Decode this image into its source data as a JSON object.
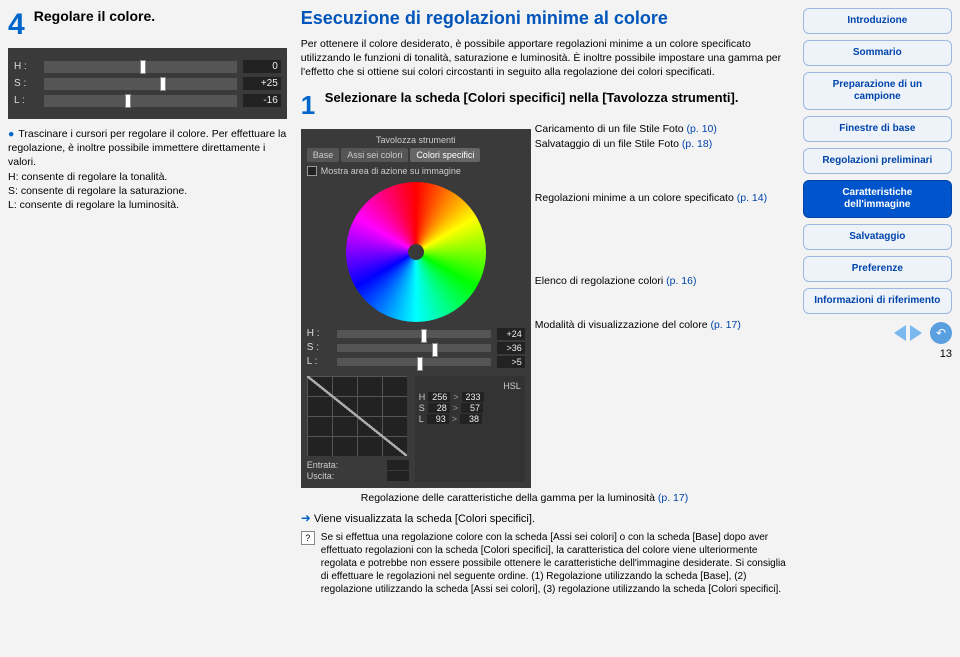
{
  "left": {
    "step_num": "4",
    "step_title": "Regolare il colore.",
    "sliders": [
      {
        "label": "H :",
        "thumb_pct": 50,
        "value": "0"
      },
      {
        "label": "S :",
        "thumb_pct": 60,
        "value": "+25"
      },
      {
        "label": "L :",
        "thumb_pct": 42,
        "value": "-16"
      }
    ],
    "caption": "Trascinare i cursori per regolare il colore. Per effettuare la regolazione, è inoltre possibile immettere direttamente i valori.",
    "lines": [
      "H: consente di regolare la tonalità.",
      "S: consente di regolare la saturazione.",
      "L: consente di regolare la luminosità."
    ]
  },
  "mid": {
    "title": "Esecuzione di regolazioni minime al colore",
    "intro": "Per ottenere il colore desiderato, è possibile apportare regolazioni minime a un colore specificato utilizzando le funzioni di tonalità, saturazione e luminosità. È inoltre possibile impostare una gamma per l'effetto che si ottiene sui colori circostanti in seguito alla regolazione dei colori specificati.",
    "substep_num": "1",
    "substep_title": "Selezionare la scheda [Colori specifici] nella [Tavolozza strumenti].",
    "palette": {
      "header": "Tavolozza strumenti",
      "tabs": [
        "Base",
        "Assi sei colori",
        "Colori specifici"
      ],
      "checkbox": "Mostra area di azione su immagine",
      "mini_sliders": [
        {
          "label": "H :",
          "value": "+24"
        },
        {
          "label": "S :",
          "value": ">36"
        },
        {
          "label": "L :",
          "value": ">5"
        }
      ],
      "entrata": "Entrata:",
      "uscita": "Uscita:",
      "tbl_head": "HSL",
      "tbl_rows": [
        {
          "l": "H",
          "a": "256",
          "b": "233"
        },
        {
          "l": "S",
          "a": "28",
          "b": "57"
        },
        {
          "l": "L",
          "a": "93",
          "b": "38"
        }
      ]
    },
    "annotations": {
      "a1_label": "Caricamento di un file Stile Foto",
      "a1_page": "(p. 10)",
      "a2_label": "Salvataggio di un file Stile Foto",
      "a2_page": "(p. 18)",
      "a3_label": "Regolazioni minime a un colore specificato",
      "a3_page": "(p. 14)",
      "a4_label": "Elenco di regolazione colori",
      "a4_page": "(p. 16)",
      "a5_label": "Modalità di visualizzazione del colore",
      "a5_page": "(p. 17)",
      "a6_label": "Regolazione delle caratteristiche della gamma per la luminosità",
      "a6_page": "(p. 17)"
    },
    "result": "Viene visualizzata la scheda [Colori specifici].",
    "note": "Se si effettua una regolazione colore con la scheda [Assi sei colori] o con la scheda [Base] dopo aver effettuato regolazioni con la scheda [Colori specifici], la caratteristica del colore viene ulteriormente regolata e potrebbe non essere possibile ottenere le caratteristiche dell'immagine desiderate. Si consiglia di effettuare le regolazioni nel seguente ordine. (1) Regolazione utilizzando la scheda [Base], (2) regolazione utilizzando la scheda [Assi sei colori], (3) regolazione utilizzando la scheda [Colori specifici]."
  },
  "sidebar": [
    {
      "label": "Introduzione",
      "active": false
    },
    {
      "label": "Sommario",
      "active": false
    },
    {
      "label": "Preparazione di un campione",
      "active": false
    },
    {
      "label": "Finestre di base",
      "active": false
    },
    {
      "label": "Regolazioni preliminari",
      "active": false
    },
    {
      "label": "Caratteristiche dell'immagine",
      "active": true
    },
    {
      "label": "Salvataggio",
      "active": false
    },
    {
      "label": "Preferenze",
      "active": false
    },
    {
      "label": "Informazioni di riferimento",
      "active": false
    }
  ],
  "page_number": "13"
}
